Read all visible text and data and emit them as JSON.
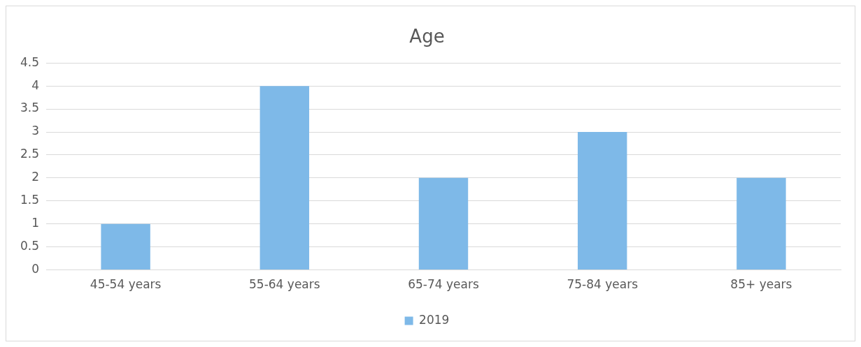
{
  "chart_data": {
    "type": "bar",
    "title": "Age",
    "categories": [
      "45-54 years",
      "55-64 years",
      "65-74 years",
      "75-84 years",
      "85+ years"
    ],
    "series": [
      {
        "name": "2019",
        "color": "#7eb9e8",
        "values": [
          1,
          4,
          2,
          3,
          2
        ]
      }
    ],
    "ylim": [
      0,
      4.5
    ],
    "yticks": [
      0,
      0.5,
      1,
      1.5,
      2,
      2.5,
      3,
      3.5,
      4,
      4.5
    ],
    "grid": "y",
    "legend": "bottom"
  }
}
